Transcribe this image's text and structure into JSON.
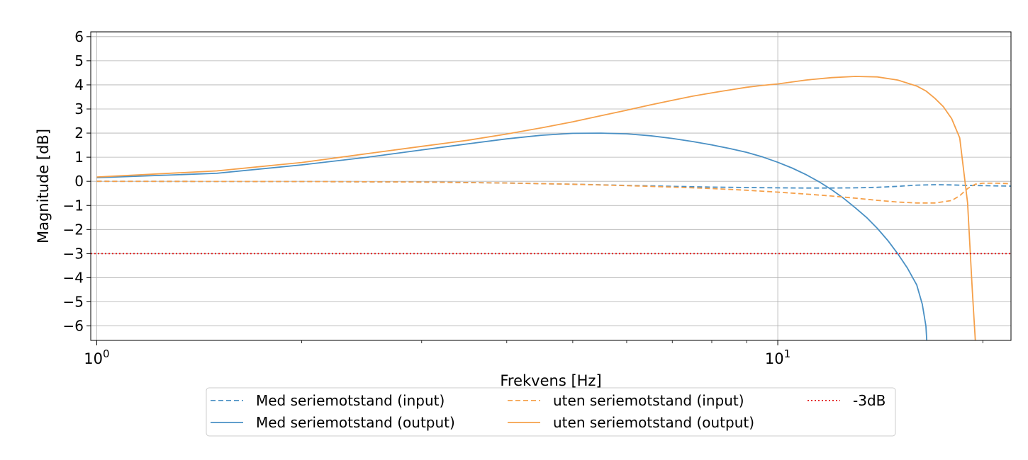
{
  "chart_data": {
    "type": "line",
    "title": "",
    "xlabel": "Frekvens [Hz]",
    "ylabel": "Magnitude [dB]",
    "xscale": "log",
    "xlim": [
      0.98,
      22
    ],
    "ylim": [
      -6.6,
      6.2
    ],
    "grid": true,
    "legend_position": "bottom-center",
    "x_major_ticks": [
      {
        "value": 1,
        "base": "10",
        "exp": "0"
      },
      {
        "value": 10,
        "base": "10",
        "exp": "1"
      }
    ],
    "x_minor_ticks": [
      2,
      3,
      4,
      5,
      6,
      7,
      8,
      9,
      20
    ],
    "y_ticks": [
      {
        "value": 6,
        "label": "6"
      },
      {
        "value": 5,
        "label": "5"
      },
      {
        "value": 4,
        "label": "4"
      },
      {
        "value": 3,
        "label": "3"
      },
      {
        "value": 2,
        "label": "2"
      },
      {
        "value": 1,
        "label": "1"
      },
      {
        "value": 0,
        "label": "0"
      },
      {
        "value": -1,
        "label": "−1"
      },
      {
        "value": -2,
        "label": "−2"
      },
      {
        "value": -3,
        "label": "−3"
      },
      {
        "value": -4,
        "label": "−4"
      },
      {
        "value": -5,
        "label": "−5"
      },
      {
        "value": -6,
        "label": "−6"
      }
    ],
    "series": [
      {
        "name": "Med seriemotstand (input)",
        "color": "#4a90c4",
        "style": "dashed",
        "x": [
          1,
          2,
          3,
          4,
          5,
          6,
          7,
          8,
          9,
          10,
          11,
          12,
          13,
          14,
          15,
          16,
          17,
          18,
          19,
          20,
          21,
          22
        ],
        "y": [
          0.0,
          -0.01,
          -0.03,
          -0.07,
          -0.12,
          -0.17,
          -0.21,
          -0.24,
          -0.26,
          -0.27,
          -0.28,
          -0.28,
          -0.27,
          -0.25,
          -0.21,
          -0.16,
          -0.14,
          -0.15,
          -0.17,
          -0.18,
          -0.19,
          -0.2
        ]
      },
      {
        "name": "Med seriemotstand (output)",
        "color": "#4a90c4",
        "style": "solid",
        "x": [
          1,
          1.5,
          2,
          2.5,
          3,
          3.5,
          4,
          4.5,
          5,
          5.5,
          6,
          6.5,
          7,
          7.5,
          8,
          8.5,
          9,
          9.5,
          10,
          10.5,
          11,
          11.5,
          12,
          12.5,
          13,
          13.5,
          14,
          14.5,
          15,
          15.5,
          16,
          16.3,
          16.5,
          16.55
        ],
        "y": [
          0.15,
          0.33,
          0.68,
          1.0,
          1.3,
          1.55,
          1.76,
          1.91,
          1.99,
          2.0,
          1.97,
          1.89,
          1.78,
          1.65,
          1.51,
          1.36,
          1.2,
          1.01,
          0.79,
          0.55,
          0.28,
          -0.02,
          -0.35,
          -0.71,
          -1.1,
          -1.5,
          -1.95,
          -2.45,
          -3.0,
          -3.6,
          -4.3,
          -5.1,
          -6.0,
          -6.6
        ]
      },
      {
        "name": "uten seriemotstand (input)",
        "color": "#f5a04a",
        "style": "dashed",
        "x": [
          1,
          2,
          3,
          4,
          5,
          6,
          7,
          8,
          9,
          10,
          11,
          12,
          13,
          14,
          15,
          16,
          17,
          18,
          18.5,
          19,
          19.5,
          20,
          21,
          22
        ],
        "y": [
          0.0,
          -0.01,
          -0.03,
          -0.07,
          -0.12,
          -0.18,
          -0.24,
          -0.3,
          -0.37,
          -0.45,
          -0.53,
          -0.61,
          -0.7,
          -0.79,
          -0.86,
          -0.9,
          -0.9,
          -0.8,
          -0.6,
          -0.3,
          -0.12,
          -0.08,
          -0.08,
          -0.1
        ]
      },
      {
        "name": "uten seriemotstand (output)",
        "color": "#f5a04a",
        "style": "solid",
        "x": [
          1,
          1.5,
          2,
          2.5,
          3,
          3.5,
          4,
          4.5,
          5,
          5.5,
          6,
          6.5,
          7,
          7.5,
          8,
          8.5,
          9,
          9.5,
          10,
          11,
          12,
          13,
          14,
          15,
          16,
          16.5,
          17,
          17.5,
          18,
          18.5,
          19,
          19.3,
          19.5
        ],
        "y": [
          0.18,
          0.43,
          0.78,
          1.15,
          1.45,
          1.7,
          1.96,
          2.22,
          2.47,
          2.72,
          2.95,
          3.17,
          3.36,
          3.53,
          3.67,
          3.79,
          3.9,
          3.98,
          4.04,
          4.2,
          4.3,
          4.35,
          4.33,
          4.2,
          3.95,
          3.75,
          3.45,
          3.1,
          2.6,
          1.8,
          -0.9,
          -4.5,
          -6.6
        ]
      },
      {
        "name": "-3dB",
        "color": "#e01010",
        "style": "dotted",
        "x": [
          0.98,
          22
        ],
        "y": [
          -3,
          -3
        ]
      }
    ]
  }
}
